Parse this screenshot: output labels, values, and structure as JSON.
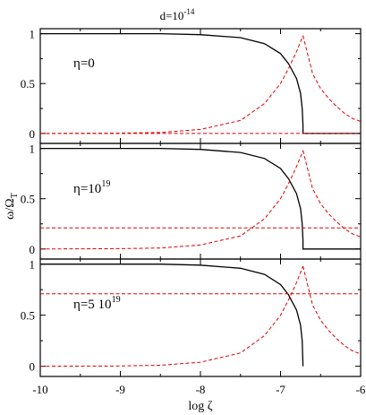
{
  "chart_data": {
    "type": "line",
    "title": "d=10",
    "title_sup": "-14",
    "xlabel": "log ζ",
    "ylabel": "ω/Ω",
    "ylabel_sub": "T",
    "xlim": [
      -10,
      -6
    ],
    "x_ticks": [
      -10,
      -9,
      -8,
      -7,
      -6
    ],
    "colors": {
      "black_curve": "#000000",
      "red_curve": "#e00000"
    },
    "panels": [
      {
        "label_main": "η=0",
        "label_sup": "",
        "ylim": [
          -0.1,
          1.05
        ],
        "y_ticks": [
          0,
          0.5,
          1
        ],
        "y_tick_labels": [
          "0",
          "0.5",
          "1"
        ],
        "series": [
          {
            "style": "black-solid",
            "x": [
              -10,
              -8.5,
              -8.0,
              -7.5,
              -7.2,
              -7.0,
              -6.9,
              -6.8,
              -6.75,
              -6.73,
              -6.72,
              -6.72,
              -6.0
            ],
            "y": [
              1.0,
              1.0,
              0.99,
              0.96,
              0.9,
              0.8,
              0.7,
              0.55,
              0.4,
              0.25,
              0.08,
              0.0,
              0.0
            ]
          },
          {
            "style": "red-dashed-rising",
            "x": [
              -10,
              -9.0,
              -8.5,
              -8.0,
              -7.5,
              -7.2,
              -7.0,
              -6.9,
              -6.8,
              -6.72
            ],
            "y": [
              0.0,
              0.003,
              0.01,
              0.04,
              0.13,
              0.3,
              0.5,
              0.65,
              0.82,
              0.98
            ]
          },
          {
            "style": "red-dashed-falling",
            "x": [
              -6.72,
              -6.6,
              -6.5,
              -6.4,
              -6.3,
              -6.2,
              -6.1,
              -6.0
            ],
            "y": [
              0.98,
              0.6,
              0.45,
              0.35,
              0.27,
              0.2,
              0.15,
              0.12
            ]
          },
          {
            "style": "red-dashed-flat",
            "x": [
              -10,
              -6.0
            ],
            "y": [
              0.0,
              0.0
            ]
          }
        ]
      },
      {
        "label_main": "η=10",
        "label_sup": "19",
        "ylim": [
          -0.1,
          1.05
        ],
        "y_ticks": [
          0,
          0.5,
          1
        ],
        "y_tick_labels": [
          "0",
          "0.5",
          "1"
        ],
        "series": [
          {
            "style": "black-solid",
            "x": [
              -10,
              -8.5,
              -8.0,
              -7.5,
              -7.2,
              -7.0,
              -6.9,
              -6.8,
              -6.75,
              -6.73,
              -6.72,
              -6.72,
              -6.0
            ],
            "y": [
              1.0,
              1.0,
              0.99,
              0.96,
              0.9,
              0.8,
              0.7,
              0.55,
              0.4,
              0.25,
              0.08,
              0.0,
              0.0
            ]
          },
          {
            "style": "red-dashed-rising",
            "x": [
              -10,
              -9.0,
              -8.5,
              -8.0,
              -7.5,
              -7.2,
              -7.0,
              -6.9,
              -6.8,
              -6.72
            ],
            "y": [
              0.0,
              0.003,
              0.01,
              0.04,
              0.13,
              0.3,
              0.5,
              0.65,
              0.82,
              0.98
            ]
          },
          {
            "style": "red-dashed-falling",
            "x": [
              -6.72,
              -6.6,
              -6.5,
              -6.4,
              -6.3,
              -6.2,
              -6.1,
              -6.0
            ],
            "y": [
              0.98,
              0.6,
              0.45,
              0.35,
              0.27,
              0.2,
              0.15,
              0.12
            ]
          },
          {
            "style": "red-dashed-flat",
            "x": [
              -10,
              -6.0
            ],
            "y": [
              0.21,
              0.21
            ]
          }
        ]
      },
      {
        "label_main": "η=5 10",
        "label_sup": "19",
        "ylim": [
          -0.1,
          1.05
        ],
        "y_ticks": [
          0,
          0.5,
          1
        ],
        "y_tick_labels": [
          "0",
          "0.5",
          "1"
        ],
        "series": [
          {
            "style": "black-solid",
            "x": [
              -10,
              -8.5,
              -8.0,
              -7.5,
              -7.2,
              -7.0,
              -6.9,
              -6.8,
              -6.75,
              -6.73,
              -6.72
            ],
            "y": [
              1.0,
              1.0,
              0.99,
              0.96,
              0.9,
              0.8,
              0.7,
              0.55,
              0.4,
              0.25,
              0.0
            ]
          },
          {
            "style": "red-dashed-rising",
            "x": [
              -10,
              -9.0,
              -8.5,
              -8.0,
              -7.5,
              -7.2,
              -7.0,
              -6.9,
              -6.8,
              -6.72
            ],
            "y": [
              0.0,
              0.003,
              0.01,
              0.04,
              0.13,
              0.3,
              0.5,
              0.65,
              0.82,
              0.98
            ]
          },
          {
            "style": "red-dashed-falling",
            "x": [
              -6.72,
              -6.6,
              -6.5,
              -6.4,
              -6.3,
              -6.2,
              -6.1,
              -6.0
            ],
            "y": [
              0.98,
              0.6,
              0.45,
              0.35,
              0.27,
              0.2,
              0.15,
              0.12
            ]
          },
          {
            "style": "red-dashed-flat",
            "x": [
              -10,
              -6.0
            ],
            "y": [
              0.71,
              0.71
            ]
          }
        ]
      }
    ]
  }
}
